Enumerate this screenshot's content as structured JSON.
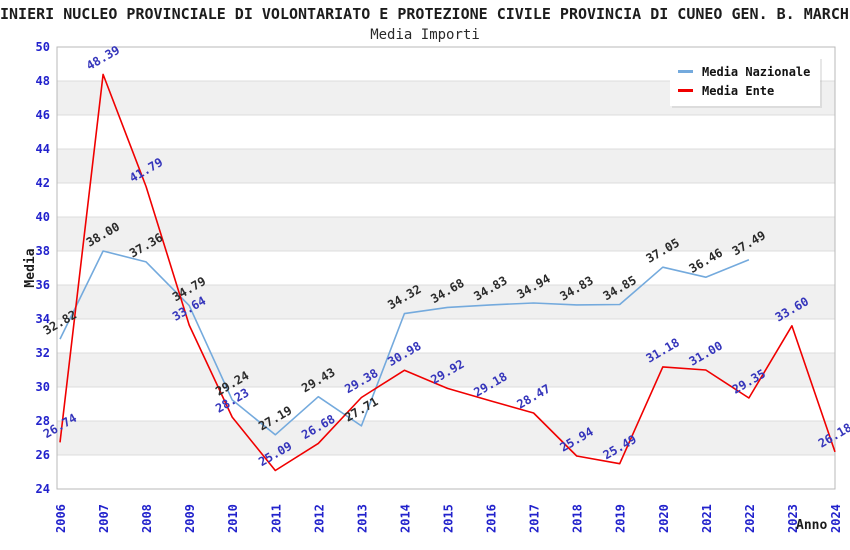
{
  "header": {
    "title": "INIERI NUCLEO PROVINCIALE DI VOLONTARIATO E PROTEZIONE CIVILE PROVINCIA DI CUNEO GEN. B. MARCHI",
    "subtitle": "Media Importi"
  },
  "legend": {
    "items": [
      {
        "label": "Media Nazionale",
        "color": "#74aadd"
      },
      {
        "label": "Media Ente",
        "color": "#f00000"
      }
    ]
  },
  "chart_data": {
    "type": "line",
    "title": "Media Importi",
    "xlabel": "Anno",
    "ylabel": "Media",
    "x": [
      2006,
      2007,
      2008,
      2009,
      2010,
      2011,
      2012,
      2013,
      2014,
      2015,
      2016,
      2017,
      2018,
      2019,
      2020,
      2021,
      2022,
      2023,
      2024
    ],
    "series": [
      {
        "name": "Media Nazionale",
        "color": "#74aadd",
        "label_color": "#2b2b2b",
        "values": [
          32.82,
          38.0,
          37.36,
          34.79,
          29.24,
          27.19,
          29.43,
          27.71,
          34.32,
          34.68,
          34.83,
          34.94,
          34.83,
          34.85,
          37.05,
          36.46,
          37.49,
          null,
          null
        ]
      },
      {
        "name": "Media Ente",
        "color": "#f00000",
        "label_color": "#3535bb",
        "values": [
          26.74,
          48.39,
          41.79,
          33.64,
          28.23,
          25.09,
          26.68,
          29.38,
          30.98,
          29.92,
          29.18,
          28.47,
          25.94,
          25.49,
          31.18,
          31.0,
          29.35,
          33.6,
          26.18
        ]
      }
    ],
    "ylim": [
      24,
      50
    ],
    "ytick_step": 2,
    "grid": true,
    "legend_position": "top-right",
    "band_colors": [
      "#ffffff",
      "#f0f0f0"
    ],
    "gridline_color": "#dcdcdc",
    "border_color": "#b9b9b9",
    "axis_tick_color": "#2222cc"
  }
}
